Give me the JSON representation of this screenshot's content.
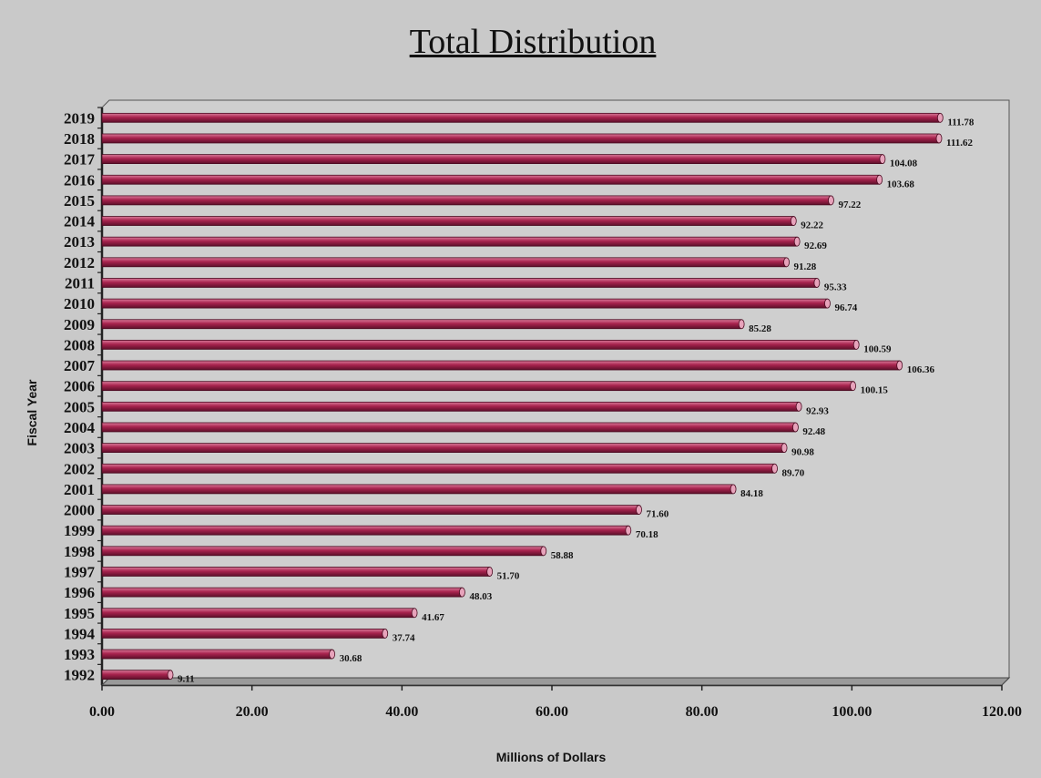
{
  "chart_data": {
    "type": "bar",
    "orientation": "horizontal",
    "title": "Total Distribution",
    "xlabel": "Millions of Dollars",
    "ylabel": "Fiscal Year",
    "xlim": [
      0,
      120
    ],
    "x_ticks": [
      "0.00",
      "20.00",
      "40.00",
      "60.00",
      "80.00",
      "100.00",
      "120.00"
    ],
    "grid": false,
    "legend": "none",
    "bar_color": "#a8234e",
    "categories": [
      "2019",
      "2018",
      "2017",
      "2016",
      "2015",
      "2014",
      "2013",
      "2012",
      "2011",
      "2010",
      "2009",
      "2008",
      "2007",
      "2006",
      "2005",
      "2004",
      "2003",
      "2002",
      "2001",
      "2000",
      "1999",
      "1998",
      "1997",
      "1996",
      "1995",
      "1994",
      "1993",
      "1992"
    ],
    "values": [
      111.78,
      111.62,
      104.08,
      103.68,
      97.22,
      92.22,
      92.69,
      91.28,
      95.33,
      96.74,
      85.28,
      100.59,
      106.36,
      100.15,
      92.93,
      92.48,
      90.98,
      89.7,
      84.18,
      71.6,
      70.18,
      58.88,
      51.7,
      48.03,
      41.67,
      37.74,
      30.68,
      9.11
    ],
    "data_labels": [
      "111.78",
      "111.62",
      "104.08",
      "103.68",
      "97.22",
      "92.22",
      "92.69",
      "91.28",
      "95.33",
      "96.74",
      "85.28",
      "100.59",
      "106.36",
      "100.15",
      "92.93",
      "92.48",
      "90.98",
      "89.70",
      "84.18",
      "71.60",
      "70.18",
      "58.88",
      "51.70",
      "48.03",
      "41.67",
      "37.74",
      "30.68",
      "9.11"
    ]
  }
}
